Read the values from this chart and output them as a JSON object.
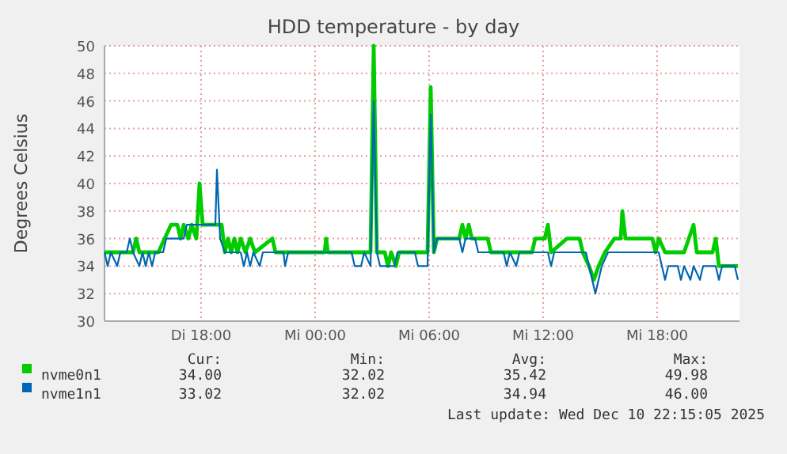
{
  "chart_data": {
    "type": "line",
    "title": "HDD temperature - by day",
    "ylabel": "Degrees Celsius",
    "xlim": [
      "2025-12-09T12:55",
      "2025-12-10T22:20"
    ],
    "xticks": [
      {
        "value": "2025-12-09T18:00",
        "label": "Di 18:00"
      },
      {
        "value": "2025-12-10T00:00",
        "label": "Mi 00:00"
      },
      {
        "value": "2025-12-10T06:00",
        "label": "Mi 06:00"
      },
      {
        "value": "2025-12-10T12:00",
        "label": "Mi 12:00"
      },
      {
        "value": "2025-12-10T18:00",
        "label": "Mi 18:00"
      }
    ],
    "ylim": [
      30,
      50
    ],
    "yticks": [
      30,
      32,
      34,
      36,
      38,
      40,
      42,
      44,
      46,
      48,
      50
    ],
    "grid": true,
    "legend": "bottom",
    "marker": "none",
    "line_style": "solid",
    "series": [
      {
        "name": "nvme0n1",
        "color": "#00cc00",
        "x": [
          "2025-12-09T12:55",
          "2025-12-09T14:05",
          "2025-12-09T14:25",
          "2025-12-09T14:35",
          "2025-12-09T14:45",
          "2025-12-09T15:45",
          "2025-12-09T16:05",
          "2025-12-09T16:25",
          "2025-12-09T16:45",
          "2025-12-09T16:55",
          "2025-12-09T17:05",
          "2025-12-09T17:20",
          "2025-12-09T17:30",
          "2025-12-09T17:45",
          "2025-12-09T17:55",
          "2025-12-09T18:05",
          "2025-12-09T19:05",
          "2025-12-09T19:15",
          "2025-12-09T19:25",
          "2025-12-09T19:35",
          "2025-12-09T19:45",
          "2025-12-09T19:55",
          "2025-12-09T20:05",
          "2025-12-09T20:20",
          "2025-12-09T20:35",
          "2025-12-09T20:50",
          "2025-12-09T21:45",
          "2025-12-09T21:55",
          "2025-12-10T00:30",
          "2025-12-10T00:35",
          "2025-12-10T00:40",
          "2025-12-10T02:55",
          "2025-12-10T03:05",
          "2025-12-10T03:15",
          "2025-12-10T03:40",
          "2025-12-10T03:50",
          "2025-12-10T04:00",
          "2025-12-10T04:15",
          "2025-12-10T04:25",
          "2025-12-10T05:55",
          "2025-12-10T06:05",
          "2025-12-10T06:15",
          "2025-12-10T06:25",
          "2025-12-10T07:35",
          "2025-12-10T07:45",
          "2025-12-10T07:55",
          "2025-12-10T08:05",
          "2025-12-10T08:15",
          "2025-12-10T09:05",
          "2025-12-10T09:15",
          "2025-12-10T11:25",
          "2025-12-10T11:35",
          "2025-12-10T12:05",
          "2025-12-10T12:15",
          "2025-12-10T12:25",
          "2025-12-10T13:15",
          "2025-12-10T13:55",
          "2025-12-10T14:05",
          "2025-12-10T14:25",
          "2025-12-10T14:40",
          "2025-12-10T14:55",
          "2025-12-10T15:15",
          "2025-12-10T15:45",
          "2025-12-10T16:05",
          "2025-12-10T16:10",
          "2025-12-10T16:20",
          "2025-12-10T17:45",
          "2025-12-10T17:55",
          "2025-12-10T18:05",
          "2025-12-10T18:25",
          "2025-12-10T19:25",
          "2025-12-10T19:55",
          "2025-12-10T20:05",
          "2025-12-10T20:55",
          "2025-12-10T21:05",
          "2025-12-10T21:15",
          "2025-12-10T22:15"
        ],
        "values": [
          35,
          35,
          35,
          36,
          35,
          35,
          36,
          37,
          37,
          36,
          37,
          36,
          37,
          36,
          40,
          37,
          37,
          35,
          36,
          35,
          36,
          35,
          36,
          35,
          36,
          35,
          36,
          35,
          35,
          36,
          35,
          35,
          50,
          35,
          35,
          34,
          35,
          34,
          35,
          35,
          47,
          35,
          36,
          36,
          37,
          36,
          37,
          36,
          36,
          35,
          35,
          36,
          36,
          37,
          35,
          36,
          36,
          35,
          34,
          33,
          34,
          35,
          36,
          36,
          38,
          36,
          36,
          35,
          36,
          35,
          35,
          37,
          35,
          35,
          36,
          34,
          34
        ]
      },
      {
        "name": "nvme1n1",
        "color": "#0066b3",
        "x": [
          "2025-12-09T12:55",
          "2025-12-09T13:05",
          "2025-12-09T13:15",
          "2025-12-09T13:35",
          "2025-12-09T13:45",
          "2025-12-09T14:05",
          "2025-12-09T14:15",
          "2025-12-09T14:25",
          "2025-12-09T14:45",
          "2025-12-09T14:55",
          "2025-12-09T15:05",
          "2025-12-09T15:15",
          "2025-12-09T15:25",
          "2025-12-09T15:35",
          "2025-12-09T16:00",
          "2025-12-09T16:10",
          "2025-12-09T17:05",
          "2025-12-09T17:15",
          "2025-12-09T18:45",
          "2025-12-09T18:50",
          "2025-12-09T19:00",
          "2025-12-09T19:15",
          "2025-12-09T20:05",
          "2025-12-09T20:15",
          "2025-12-09T20:25",
          "2025-12-09T20:35",
          "2025-12-09T20:45",
          "2025-12-09T21:05",
          "2025-12-09T21:15",
          "2025-12-09T22:20",
          "2025-12-09T22:25",
          "2025-12-09T22:35",
          "2025-12-10T01:55",
          "2025-12-10T02:05",
          "2025-12-10T02:25",
          "2025-12-10T02:35",
          "2025-12-10T02:55",
          "2025-12-10T03:05",
          "2025-12-10T03:15",
          "2025-12-10T03:25",
          "2025-12-10T04:10",
          "2025-12-10T04:20",
          "2025-12-10T05:15",
          "2025-12-10T05:25",
          "2025-12-10T05:55",
          "2025-12-10T06:05",
          "2025-12-10T06:15",
          "2025-12-10T06:25",
          "2025-12-10T07:35",
          "2025-12-10T07:45",
          "2025-12-10T07:55",
          "2025-12-10T08:25",
          "2025-12-10T08:35",
          "2025-12-10T09:55",
          "2025-12-10T10:05",
          "2025-12-10T10:15",
          "2025-12-10T10:35",
          "2025-12-10T10:45",
          "2025-12-10T12:15",
          "2025-12-10T12:25",
          "2025-12-10T12:35",
          "2025-12-10T14:15",
          "2025-12-10T14:25",
          "2025-12-10T14:45",
          "2025-12-10T14:55",
          "2025-12-10T15:05",
          "2025-12-10T15:25",
          "2025-12-10T18:05",
          "2025-12-10T18:15",
          "2025-12-10T18:25",
          "2025-12-10T18:35",
          "2025-12-10T19:05",
          "2025-12-10T19:15",
          "2025-12-10T19:25",
          "2025-12-10T19:45",
          "2025-12-10T19:55",
          "2025-12-10T20:15",
          "2025-12-10T20:25",
          "2025-12-10T21:05",
          "2025-12-10T21:15",
          "2025-12-10T21:25",
          "2025-12-10T22:05",
          "2025-12-10T22:15"
        ],
        "values": [
          35,
          34,
          35,
          34,
          35,
          35,
          36,
          35,
          34,
          35,
          34,
          35,
          34,
          35,
          35,
          36,
          36,
          37,
          37,
          41,
          36,
          35,
          35,
          34,
          35,
          34,
          35,
          34,
          35,
          35,
          34,
          35,
          35,
          34,
          34,
          35,
          34,
          46,
          35,
          34,
          34,
          35,
          35,
          34,
          34,
          45,
          35,
          36,
          36,
          35,
          36,
          36,
          35,
          35,
          34,
          35,
          34,
          35,
          35,
          34,
          35,
          35,
          34,
          32,
          33,
          34,
          35,
          35,
          34,
          33,
          34,
          34,
          33,
          34,
          33,
          34,
          33,
          34,
          34,
          33,
          34,
          34,
          33
        ]
      }
    ],
    "annotations": [
      "Cur:",
      "Min:",
      "Avg:",
      "Max:",
      "34.00",
      "32.02",
      "35.42",
      "49.98",
      "33.02",
      "32.02",
      "34.94",
      "46.00",
      "Last update: Wed Dec 10 22:15:05 2025"
    ]
  }
}
